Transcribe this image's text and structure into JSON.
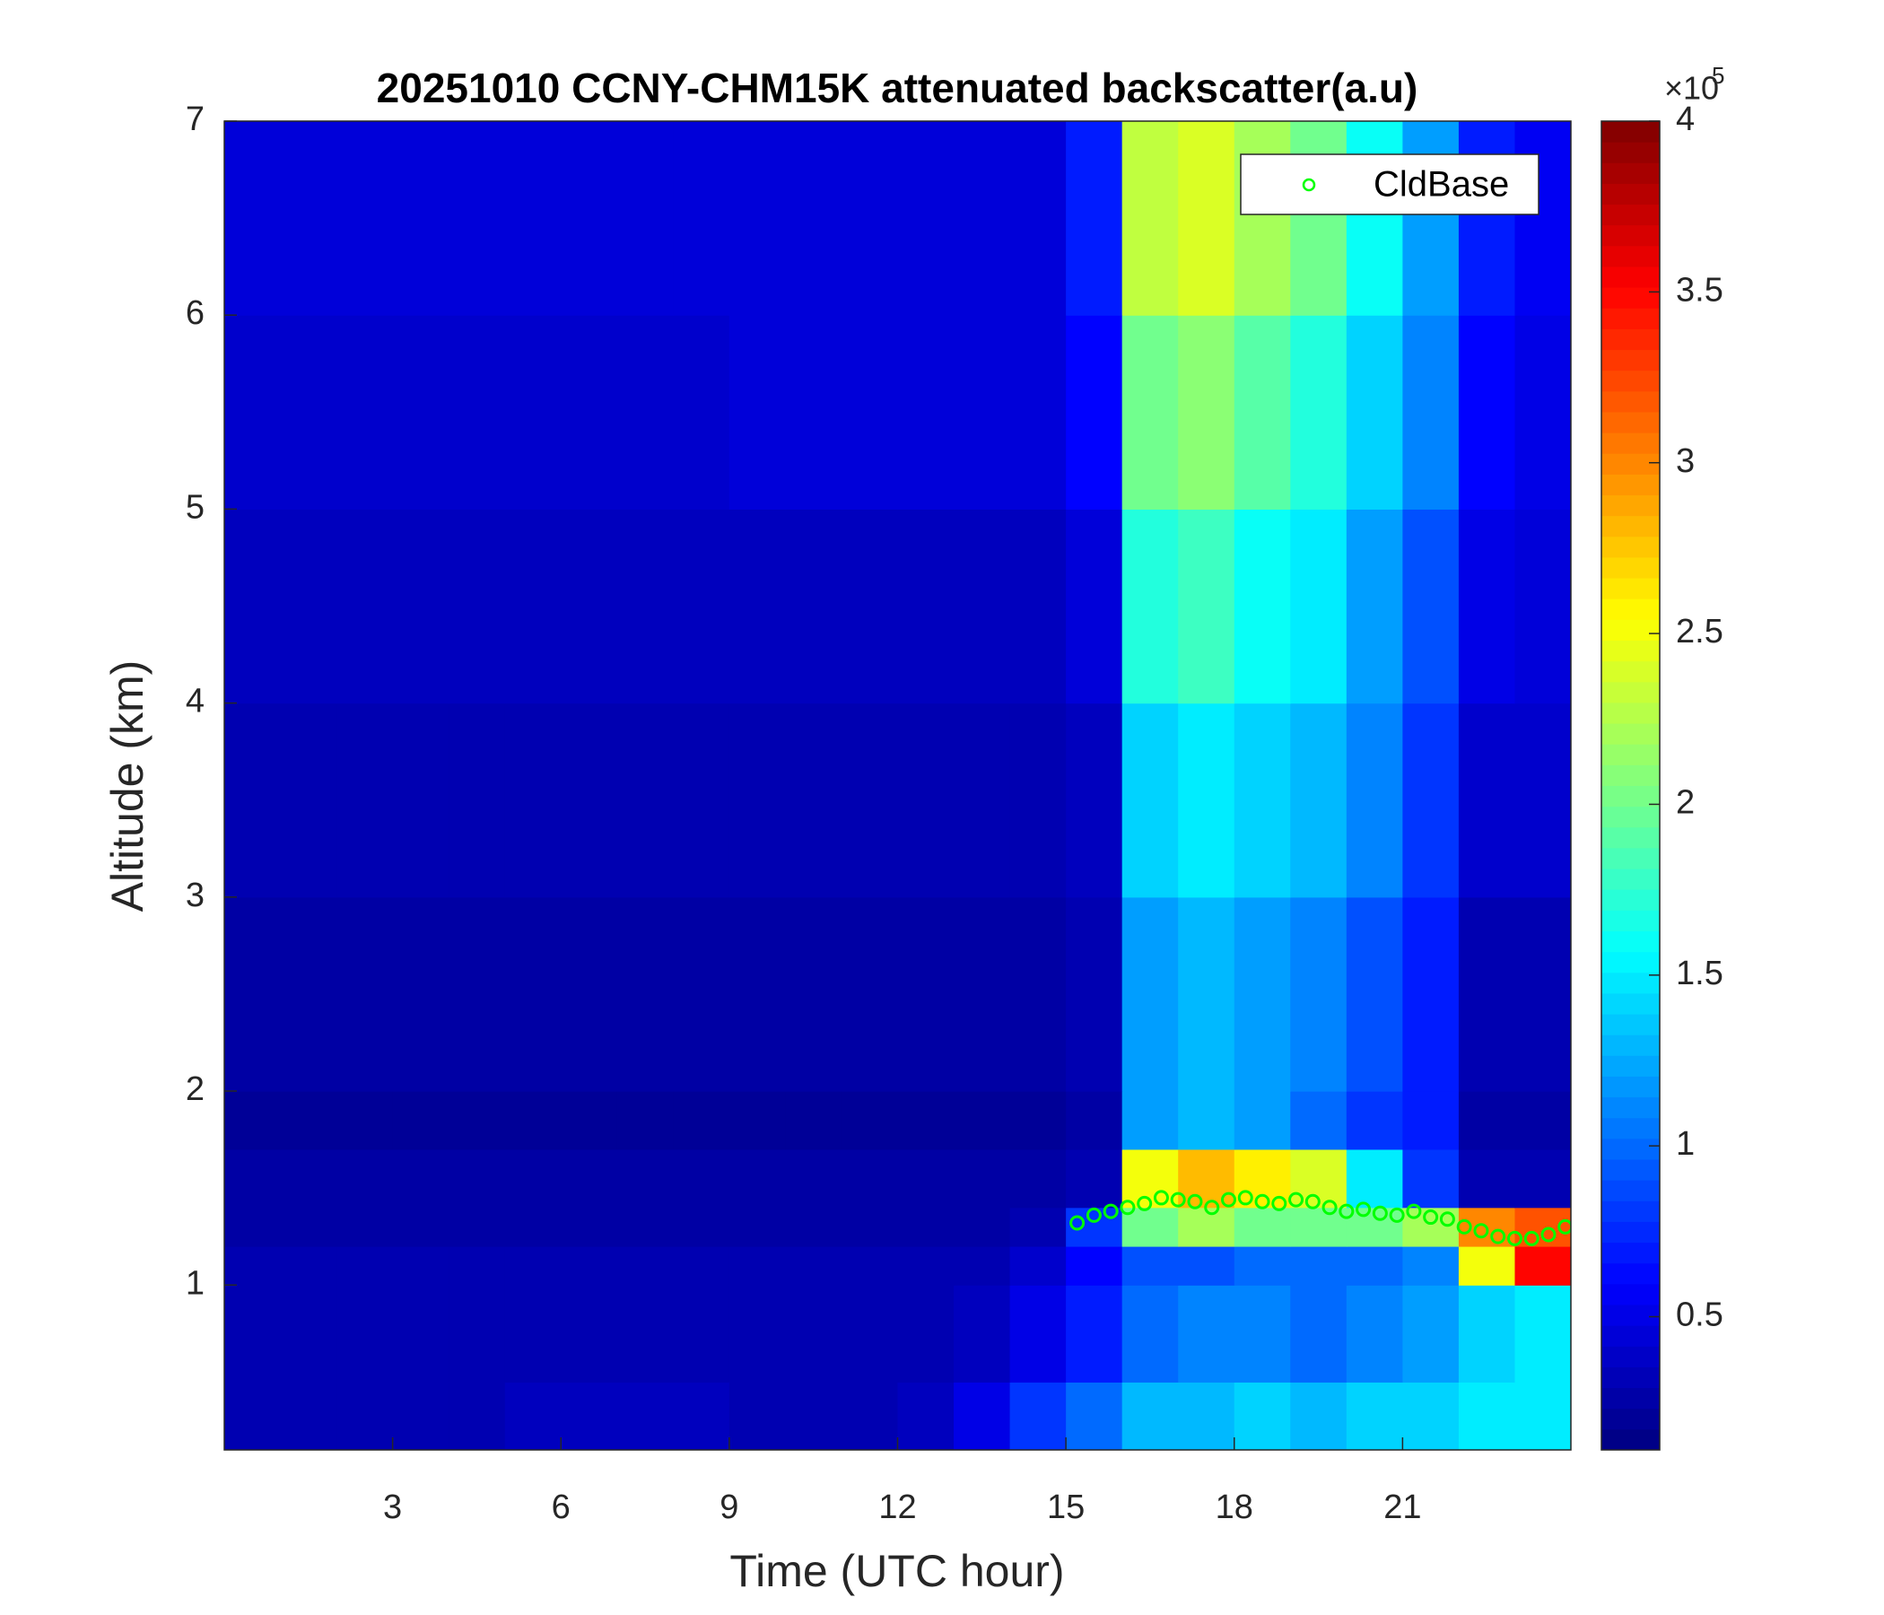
{
  "chart_data": {
    "type": "heatmap",
    "title": "20251010 CCNY-CHM15K attenuated backscatter(a.u)",
    "xlabel": "Time (UTC hour)",
    "ylabel": "Altitude (km)",
    "xlim": [
      0,
      24
    ],
    "xticks": [
      3,
      6,
      9,
      12,
      15,
      18,
      21
    ],
    "ylim": [
      0.15,
      7
    ],
    "yticks": [
      1,
      2,
      3,
      4,
      5,
      6,
      7
    ],
    "colormap": "jet",
    "clim": [
      0.11,
      4
    ],
    "colorbar_ticks": [
      0.5,
      1,
      1.5,
      2,
      2.5,
      3,
      3.5,
      4
    ],
    "colorbar_multiplier": "×10",
    "colorbar_exponent": "5",
    "x_edges": [
      0,
      1,
      2,
      3,
      4,
      5,
      6,
      7,
      8,
      9,
      10,
      11,
      12,
      13,
      14,
      15,
      16,
      17,
      18,
      19,
      20,
      21,
      22,
      23,
      24
    ],
    "y_edges": [
      0.15,
      0.5,
      1.0,
      1.2,
      1.4,
      1.7,
      2,
      3,
      4,
      5,
      6,
      7
    ],
    "z": [
      [
        0.3,
        0.3,
        0.3,
        0.3,
        0.3,
        0.35,
        0.35,
        0.35,
        0.35,
        0.3,
        0.3,
        0.3,
        0.35,
        0.5,
        0.8,
        1.0,
        1.3,
        1.3,
        1.4,
        1.3,
        1.4,
        1.4,
        1.5,
        1.5
      ],
      [
        0.3,
        0.3,
        0.3,
        0.3,
        0.3,
        0.3,
        0.3,
        0.3,
        0.3,
        0.3,
        0.3,
        0.3,
        0.3,
        0.35,
        0.5,
        0.7,
        1.0,
        1.1,
        1.1,
        1.0,
        1.1,
        1.2,
        1.4,
        1.5
      ],
      [
        0.3,
        0.3,
        0.3,
        0.3,
        0.3,
        0.3,
        0.3,
        0.3,
        0.3,
        0.3,
        0.3,
        0.3,
        0.3,
        0.3,
        0.4,
        0.6,
        0.9,
        0.9,
        1.0,
        1.0,
        1.0,
        1.1,
        2.5,
        3.5
      ],
      [
        0.25,
        0.25,
        0.25,
        0.25,
        0.25,
        0.25,
        0.25,
        0.25,
        0.25,
        0.25,
        0.25,
        0.25,
        0.25,
        0.25,
        0.3,
        0.8,
        2.0,
        2.2,
        2.0,
        2.0,
        2.0,
        2.2,
        3.0,
        3.2
      ],
      [
        0.25,
        0.25,
        0.25,
        0.25,
        0.25,
        0.25,
        0.25,
        0.25,
        0.25,
        0.25,
        0.25,
        0.25,
        0.25,
        0.25,
        0.25,
        0.3,
        2.5,
        2.8,
        2.6,
        2.4,
        1.5,
        0.8,
        0.3,
        0.3
      ],
      [
        0.2,
        0.2,
        0.2,
        0.2,
        0.2,
        0.2,
        0.2,
        0.2,
        0.2,
        0.2,
        0.2,
        0.2,
        0.2,
        0.2,
        0.2,
        0.25,
        1.2,
        1.3,
        1.2,
        1.0,
        0.8,
        0.7,
        0.25,
        0.25
      ],
      [
        0.25,
        0.25,
        0.25,
        0.25,
        0.25,
        0.25,
        0.25,
        0.25,
        0.25,
        0.25,
        0.25,
        0.25,
        0.25,
        0.25,
        0.25,
        0.3,
        1.2,
        1.3,
        1.2,
        1.1,
        0.9,
        0.7,
        0.3,
        0.3
      ],
      [
        0.3,
        0.3,
        0.3,
        0.3,
        0.3,
        0.3,
        0.3,
        0.3,
        0.3,
        0.3,
        0.3,
        0.3,
        0.3,
        0.3,
        0.3,
        0.35,
        1.4,
        1.5,
        1.4,
        1.3,
        1.1,
        0.8,
        0.4,
        0.4
      ],
      [
        0.35,
        0.35,
        0.35,
        0.35,
        0.35,
        0.35,
        0.35,
        0.35,
        0.35,
        0.35,
        0.35,
        0.35,
        0.35,
        0.35,
        0.35,
        0.45,
        1.7,
        1.8,
        1.6,
        1.5,
        1.2,
        0.9,
        0.5,
        0.45
      ],
      [
        0.4,
        0.4,
        0.4,
        0.4,
        0.4,
        0.4,
        0.4,
        0.4,
        0.4,
        0.45,
        0.45,
        0.45,
        0.45,
        0.45,
        0.45,
        0.6,
        2.0,
        2.1,
        1.9,
        1.7,
        1.4,
        1.1,
        0.6,
        0.5
      ],
      [
        0.45,
        0.45,
        0.45,
        0.45,
        0.45,
        0.45,
        0.45,
        0.45,
        0.45,
        0.45,
        0.45,
        0.45,
        0.45,
        0.45,
        0.45,
        0.7,
        2.3,
        2.4,
        2.2,
        2.0,
        1.6,
        1.2,
        0.7,
        0.55
      ]
    ],
    "cloud_base": {
      "name": "CldBase",
      "color": "#00ff00",
      "x": [
        15.2,
        15.5,
        15.8,
        16.1,
        16.4,
        16.7,
        17.0,
        17.3,
        17.6,
        17.9,
        18.2,
        18.5,
        18.8,
        19.1,
        19.4,
        19.7,
        20.0,
        20.3,
        20.6,
        20.9,
        21.2,
        21.5,
        21.8,
        22.1,
        22.4,
        22.7,
        23.0,
        23.3,
        23.6,
        23.9
      ],
      "y": [
        1.32,
        1.36,
        1.38,
        1.4,
        1.42,
        1.45,
        1.44,
        1.43,
        1.4,
        1.44,
        1.45,
        1.43,
        1.42,
        1.44,
        1.43,
        1.4,
        1.38,
        1.39,
        1.37,
        1.36,
        1.38,
        1.35,
        1.34,
        1.3,
        1.28,
        1.25,
        1.24,
        1.24,
        1.26,
        1.3
      ]
    },
    "legend": "northeast"
  }
}
